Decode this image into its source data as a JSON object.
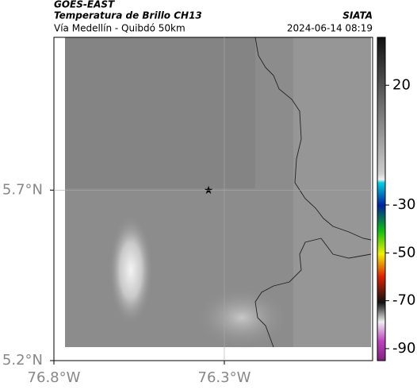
{
  "header": {
    "source": "GOES-EAST",
    "title": "Temperatura de Brillo CH13",
    "subtitle": "Vía Medellín - Quibdó 50km",
    "org": "SIATA",
    "date": "2024-06-14 08:19"
  },
  "map": {
    "xlim": [
      -76.8,
      -75.865
    ],
    "ylim": [
      5.2,
      6.148
    ],
    "xticks": [
      {
        "value": -76.8,
        "label": "76.8°W"
      },
      {
        "value": -76.3,
        "label": "76.3°W"
      }
    ],
    "yticks": [
      {
        "value": 5.2,
        "label": "5.2°N"
      },
      {
        "value": 5.7,
        "label": "5.7°N"
      }
    ]
  },
  "colorbar": {
    "lim": [
      -95,
      40
    ],
    "ticks": [
      20,
      -30,
      -50,
      -70,
      -90
    ]
  }
}
